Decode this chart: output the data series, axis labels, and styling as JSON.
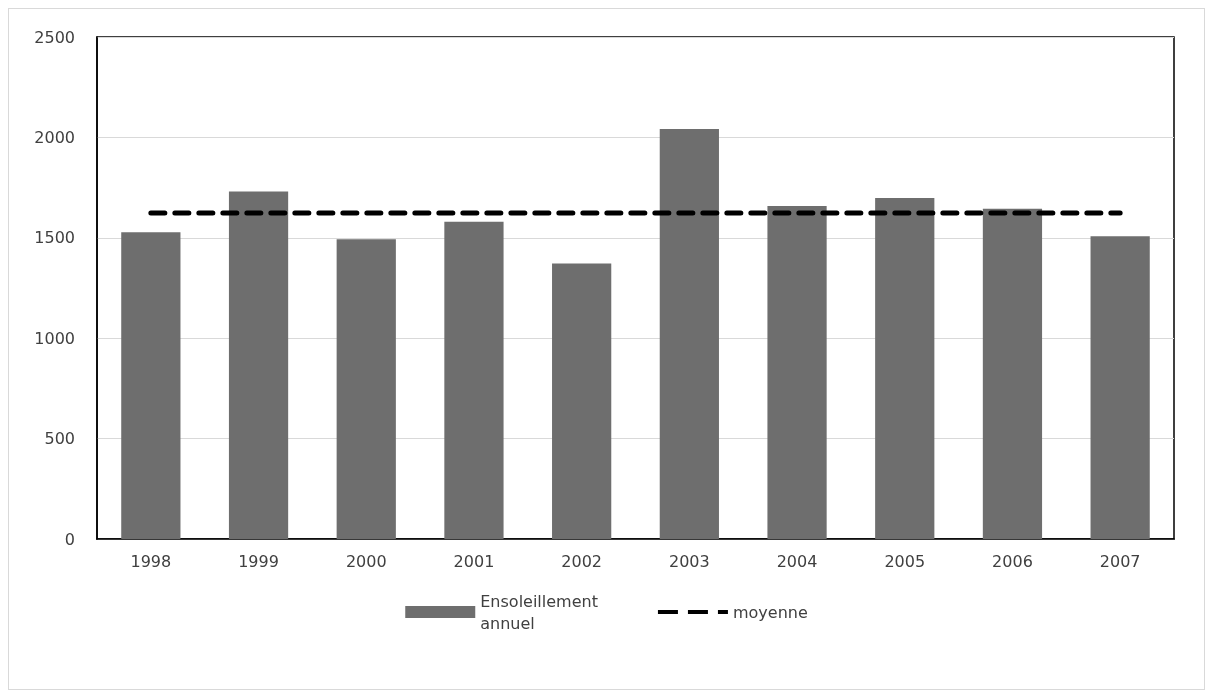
{
  "chart_data": {
    "type": "bar",
    "categories": [
      "1998",
      "1999",
      "2000",
      "2001",
      "2002",
      "2003",
      "2004",
      "2005",
      "2006",
      "2007"
    ],
    "series": [
      {
        "name": "Ensoleillement\nannuel",
        "color": "#6e6e6e",
        "values": [
          1528,
          1731,
          1493,
          1580,
          1372,
          2042,
          1658,
          1698,
          1645,
          1508
        ]
      },
      {
        "name": "moyenne",
        "type": "line",
        "color": "#000000",
        "line_style": "dashed",
        "values": [
          1623,
          1623,
          1623,
          1623,
          1623,
          1623,
          1623,
          1623,
          1623,
          1623
        ]
      }
    ],
    "ylim": [
      0,
      2500
    ],
    "yticks": [
      0,
      500,
      1000,
      1500,
      2000,
      2500
    ],
    "grid": "y",
    "legend": "bottom",
    "marker": "none"
  }
}
